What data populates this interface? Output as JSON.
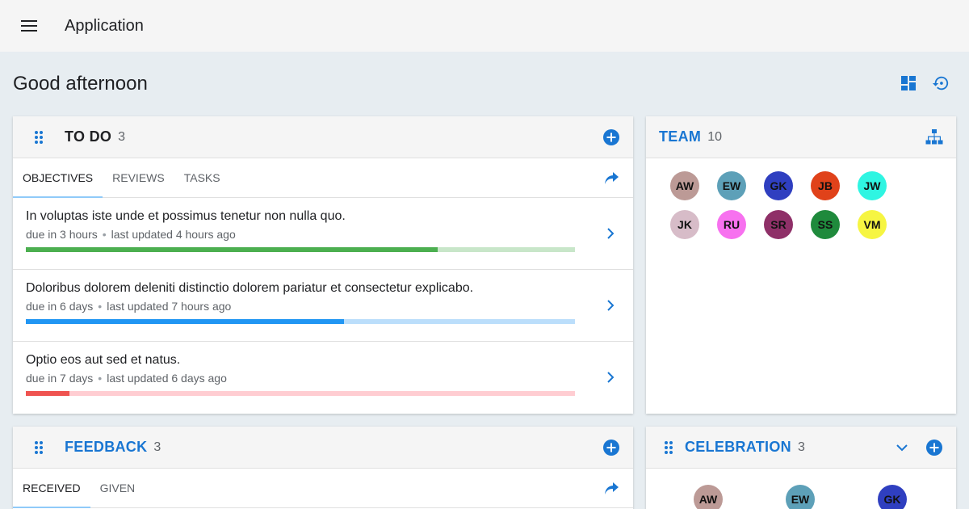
{
  "app": {
    "title": "Application"
  },
  "greeting": "Good afternoon",
  "colors": {
    "primary": "#1976d2",
    "green": "#4caf50",
    "blue": "#2196f3",
    "red": "#ef5350"
  },
  "todo": {
    "title": "TO DO",
    "count": "3",
    "tabs": [
      {
        "label": "OBJECTIVES"
      },
      {
        "label": "REVIEWS"
      },
      {
        "label": "TASKS"
      }
    ],
    "items": [
      {
        "title": "In voluptas iste unde et possimus tenetur non nulla quo.",
        "due": "due in 3 hours",
        "updated": "last updated 4 hours ago",
        "progress": 0.75,
        "color": "#4caf50",
        "track": "#c8e6c9"
      },
      {
        "title": "Doloribus dolorem deleniti distinctio dolorem pariatur et consectetur explicabo.",
        "due": "due in 6 days",
        "updated": "last updated 7 hours ago",
        "progress": 0.58,
        "color": "#2196f3",
        "track": "#bbdefb"
      },
      {
        "title": "Optio eos aut sed et natus.",
        "due": "due in 7 days",
        "updated": "last updated 6 days ago",
        "progress": 0.08,
        "color": "#ef5350",
        "track": "#ffcdd2"
      }
    ]
  },
  "team": {
    "title": "TEAM",
    "count": "10",
    "members": [
      {
        "initials": "AW",
        "color": "#bc9a96"
      },
      {
        "initials": "EW",
        "color": "#5da0b8"
      },
      {
        "initials": "GK",
        "color": "#2f3fc0"
      },
      {
        "initials": "JB",
        "color": "#e0421a"
      },
      {
        "initials": "JW",
        "color": "#2ff5e2"
      },
      {
        "initials": "JK",
        "color": "#d7bcc8"
      },
      {
        "initials": "RU",
        "color": "#f771ef"
      },
      {
        "initials": "SR",
        "color": "#8f3068"
      },
      {
        "initials": "SS",
        "color": "#1f8a3c"
      },
      {
        "initials": "VM",
        "color": "#f6f542"
      }
    ]
  },
  "feedback": {
    "title": "FEEDBACK",
    "count": "3",
    "tabs": [
      {
        "label": "RECEIVED"
      },
      {
        "label": "GIVEN"
      }
    ]
  },
  "celebration": {
    "title": "CELEBRATION",
    "count": "3",
    "members": [
      {
        "initials": "AW",
        "color": "#bc9a96"
      },
      {
        "initials": "EW",
        "color": "#5da0b8"
      },
      {
        "initials": "GK",
        "color": "#2f3fc0"
      }
    ]
  }
}
